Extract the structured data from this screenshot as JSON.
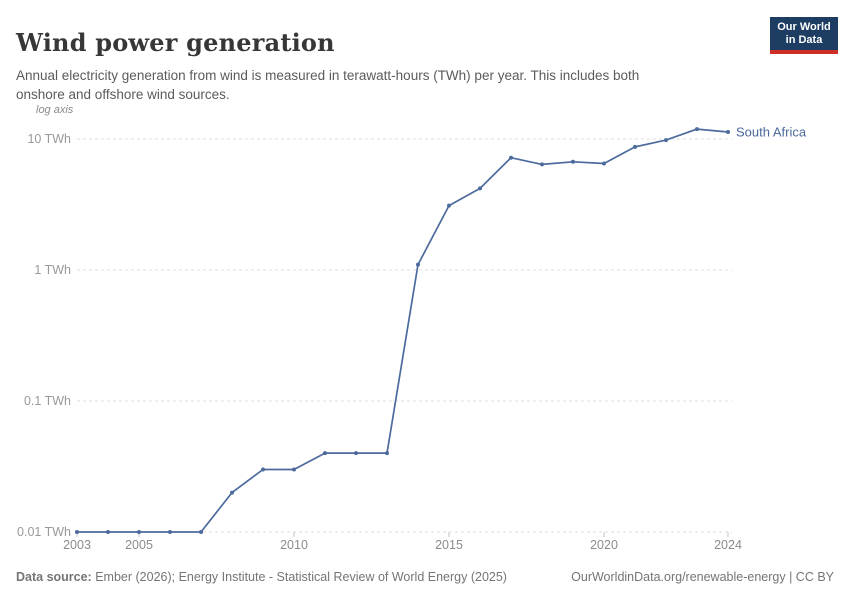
{
  "header": {
    "title": "Wind power generation",
    "subtitle": "Annual electricity generation from wind is measured in terawatt-hours (TWh) per year. This includes both onshore and offshore wind sources.",
    "logo_line1": "Our World",
    "logo_line2": "in Data"
  },
  "chart_data": {
    "type": "line",
    "title": "Wind power generation",
    "unit": "TWh",
    "axis_note": "log axis",
    "y_scale": "log",
    "grid": true,
    "xlim": [
      2003,
      2024
    ],
    "ylim": [
      0.01,
      12
    ],
    "x": [
      2003,
      2004,
      2005,
      2006,
      2007,
      2008,
      2009,
      2010,
      2011,
      2012,
      2013,
      2014,
      2015,
      2016,
      2017,
      2018,
      2019,
      2020,
      2021,
      2022,
      2023,
      2024
    ],
    "series": [
      {
        "name": "South Africa",
        "color": "#4c6a9c",
        "values": [
          0.01,
          0.01,
          0.01,
          0.01,
          0.01,
          0.02,
          0.03,
          0.03,
          0.04,
          0.04,
          0.04,
          1.1,
          3.1,
          4.2,
          7.2,
          6.4,
          6.7,
          6.5,
          8.7,
          9.8,
          11.9,
          11.3
        ]
      }
    ],
    "x_ticks": [
      2003,
      2005,
      2010,
      2015,
      2020,
      2024
    ],
    "y_ticks": [
      {
        "value": 10,
        "label": "10 TWh"
      },
      {
        "value": 1,
        "label": "1 TWh"
      },
      {
        "value": 0.1,
        "label": "0.1 TWh"
      },
      {
        "value": 0.01,
        "label": "0.01 TWh"
      }
    ]
  },
  "footer": {
    "source_label": "Data source:",
    "source_text": " Ember (2026); Energy Institute - Statistical Review of World Energy (2025)",
    "link_text": "OurWorldinData.org/renewable-energy | CC BY"
  },
  "colors": {
    "accent_line": "#4c6a9c",
    "logo_navy": "#1d3d63",
    "logo_red": "#cf2e27",
    "gridline": "#dedede",
    "axis_label": "#999999",
    "title_text": "#383636"
  }
}
